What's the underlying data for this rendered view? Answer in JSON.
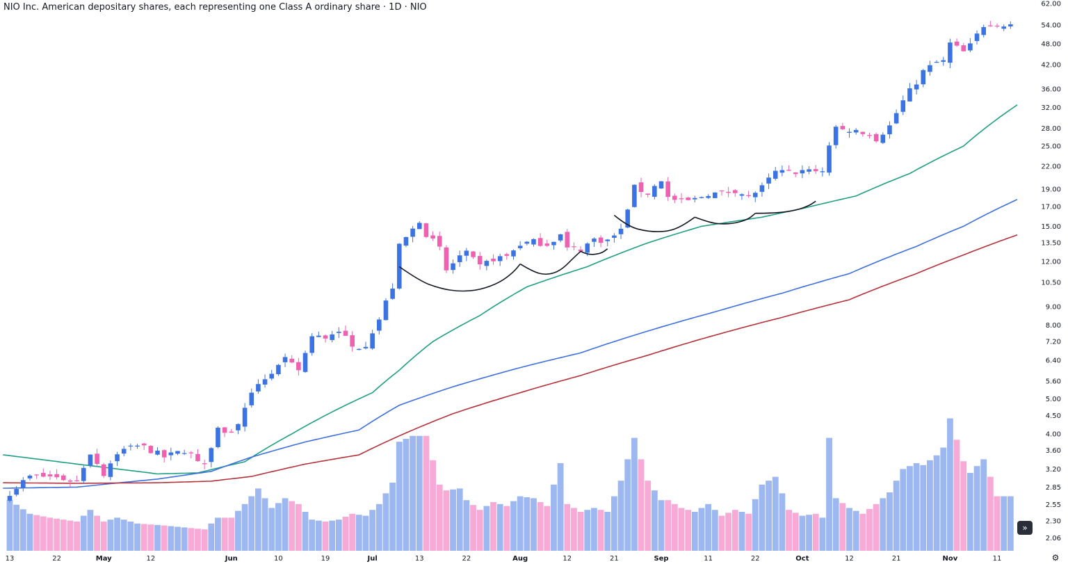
{
  "title": "NIO Inc. American depositary shares, each representing one Class A ordinary share · 1D · NIO",
  "colors": {
    "up": "#3b73e3",
    "down": "#f060b0",
    "vol_up": "#9db7f0",
    "vol_down": "#f7aad6",
    "ma_fast": "#1e9e82",
    "ma_mid": "#3d6ee0",
    "ma_slow": "#b5303a",
    "pattern": "#131722"
  },
  "icons": {
    "nav": "double-chevron-right-icon",
    "settings": "gear-icon"
  },
  "nav_button_label": "»",
  "settings_label": "⚙",
  "chart_data": {
    "type": "candlestick",
    "title": "NIO Inc. American depositary shares, each representing one Class A ordinary share · 1D · NIO",
    "y_scale": "log",
    "ylim": [
      1.9,
      62.0
    ],
    "y_ticks": [
      "62.00",
      "54.00",
      "48.00",
      "42.00",
      "36.00",
      "32.00",
      "28.00",
      "25.00",
      "22.00",
      "19.00",
      "17.00",
      "15.00",
      "13.50",
      "12.00",
      "10.50",
      "9.00",
      "8.00",
      "7.20",
      "6.40",
      "5.60",
      "5.00",
      "4.50",
      "4.00",
      "3.60",
      "3.20",
      "2.85",
      "2.55",
      "2.30",
      "2.06"
    ],
    "x_ticks": [
      {
        "label": "13",
        "bar": 0,
        "bold": false
      },
      {
        "label": "22",
        "bar": 7,
        "bold": false
      },
      {
        "label": "May",
        "bar": 14,
        "bold": true
      },
      {
        "label": "12",
        "bar": 21,
        "bold": false
      },
      {
        "label": "Jun",
        "bar": 33,
        "bold": true
      },
      {
        "label": "10",
        "bar": 40,
        "bold": false
      },
      {
        "label": "19",
        "bar": 47,
        "bold": false
      },
      {
        "label": "Jul",
        "bar": 54,
        "bold": true
      },
      {
        "label": "13",
        "bar": 61,
        "bold": false
      },
      {
        "label": "22",
        "bar": 68,
        "bold": false
      },
      {
        "label": "Aug",
        "bar": 76,
        "bold": true
      },
      {
        "label": "12",
        "bar": 83,
        "bold": false
      },
      {
        "label": "21",
        "bar": 90,
        "bold": false
      },
      {
        "label": "Sep",
        "bar": 97,
        "bold": true
      },
      {
        "label": "11",
        "bar": 104,
        "bold": false
      },
      {
        "label": "22",
        "bar": 111,
        "bold": false
      },
      {
        "label": "Oct",
        "bar": 118,
        "bold": true
      },
      {
        "label": "12",
        "bar": 125,
        "bold": false
      },
      {
        "label": "21",
        "bar": 132,
        "bold": false
      },
      {
        "label": "Nov",
        "bar": 140,
        "bold": true
      },
      {
        "label": "11",
        "bar": 147,
        "bold": false
      }
    ],
    "anchors": [
      [
        0,
        2.75,
        1.3
      ],
      [
        3,
        3.05,
        0.95
      ],
      [
        6,
        3.05,
        0.85
      ],
      [
        10,
        2.95,
        0.75
      ],
      [
        12,
        3.55,
        1.05
      ],
      [
        14,
        3.1,
        0.75
      ],
      [
        16,
        3.55,
        0.85
      ],
      [
        19,
        3.75,
        0.7
      ],
      [
        23,
        3.45,
        0.65
      ],
      [
        26,
        3.6,
        0.6
      ],
      [
        29,
        3.3,
        0.55
      ],
      [
        31,
        4.15,
        0.85
      ],
      [
        33,
        4.0,
        0.85
      ],
      [
        35,
        4.65,
        1.2
      ],
      [
        37,
        5.55,
        1.6
      ],
      [
        39,
        5.9,
        1.1
      ],
      [
        41,
        6.4,
        1.35
      ],
      [
        43,
        6.0,
        1.2
      ],
      [
        45,
        7.4,
        0.8
      ],
      [
        47,
        7.4,
        0.75
      ],
      [
        49,
        7.8,
        0.8
      ],
      [
        51,
        6.9,
        0.95
      ],
      [
        53,
        7.1,
        0.9
      ],
      [
        55,
        8.3,
        1.2
      ],
      [
        57,
        10.2,
        1.75
      ],
      [
        58,
        13.2,
        2.8
      ],
      [
        60,
        14.7,
        2.95
      ],
      [
        61,
        15.6,
        2.95
      ],
      [
        62,
        14.3,
        2.95
      ],
      [
        64,
        13.0,
        1.7
      ],
      [
        65,
        11.3,
        1.55
      ],
      [
        67,
        12.4,
        1.6
      ],
      [
        68,
        12.6,
        1.3
      ],
      [
        70,
        11.6,
        1.05
      ],
      [
        72,
        12.2,
        1.25
      ],
      [
        74,
        12.4,
        1.15
      ],
      [
        76,
        13.4,
        1.4
      ],
      [
        78,
        13.6,
        1.35
      ],
      [
        80,
        13.4,
        1.15
      ],
      [
        82,
        14.2,
        2.25
      ],
      [
        83,
        13.0,
        1.2
      ],
      [
        85,
        13.0,
        1.0
      ],
      [
        87,
        13.8,
        1.1
      ],
      [
        89,
        13.7,
        1.0
      ],
      [
        91,
        14.6,
        1.8
      ],
      [
        93,
        19.2,
        2.9
      ],
      [
        95,
        18.5,
        1.8
      ],
      [
        97,
        20.2,
        1.3
      ],
      [
        98,
        18.0,
        1.3
      ],
      [
        100,
        17.5,
        1.1
      ],
      [
        102,
        17.8,
        1.0
      ],
      [
        104,
        18.5,
        1.2
      ],
      [
        106,
        18.5,
        0.9
      ],
      [
        108,
        18.9,
        1.05
      ],
      [
        110,
        18.0,
        0.95
      ],
      [
        112,
        19.2,
        1.7
      ],
      [
        114,
        21.2,
        1.9
      ],
      [
        116,
        21.1,
        1.05
      ],
      [
        118,
        21.2,
        0.9
      ],
      [
        120,
        21.4,
        0.95
      ],
      [
        121,
        21.4,
        0.85
      ],
      [
        122,
        25.3,
        2.9
      ],
      [
        123,
        27.8,
        1.35
      ],
      [
        125,
        27.7,
        1.1
      ],
      [
        127,
        27.4,
        0.95
      ],
      [
        129,
        26.2,
        1.2
      ],
      [
        131,
        28.4,
        1.5
      ],
      [
        133,
        33.3,
        2.1
      ],
      [
        135,
        37.6,
        2.25
      ],
      [
        136,
        40.2,
        2.2
      ],
      [
        138,
        42.6,
        2.45
      ],
      [
        139,
        42.8,
        2.65
      ],
      [
        140,
        48.0,
        3.4
      ],
      [
        142,
        45.5,
        2.3
      ],
      [
        143,
        47.4,
        2.0
      ],
      [
        145,
        54.0,
        2.35
      ],
      [
        146,
        54.6,
        1.9
      ],
      [
        147,
        54.0,
        1.4
      ]
    ],
    "moving_averages": [
      {
        "points": [
          [
            -1,
            3.5
          ],
          [
            10,
            3.3
          ],
          [
            22,
            3.1
          ],
          [
            28,
            3.12
          ],
          [
            35,
            3.35
          ],
          [
            42,
            4.0
          ],
          [
            48,
            4.6
          ],
          [
            54,
            5.2
          ],
          [
            58,
            6.0
          ],
          [
            63,
            7.2
          ],
          [
            70,
            8.5
          ],
          [
            77,
            10.2
          ],
          [
            86,
            11.6
          ],
          [
            95,
            13.5
          ],
          [
            103,
            15.0
          ],
          [
            112,
            15.9
          ],
          [
            118,
            16.8
          ],
          [
            126,
            18.2
          ],
          [
            134,
            21.0
          ],
          [
            142,
            25.0
          ],
          [
            150,
            32.5
          ]
        ]
      },
      {
        "points": [
          [
            -1,
            2.83
          ],
          [
            10,
            2.85
          ],
          [
            22,
            3.0
          ],
          [
            30,
            3.15
          ],
          [
            36,
            3.45
          ],
          [
            44,
            3.8
          ],
          [
            52,
            4.1
          ],
          [
            58,
            4.8
          ],
          [
            66,
            5.4
          ],
          [
            76,
            6.1
          ],
          [
            85,
            6.7
          ],
          [
            95,
            7.7
          ],
          [
            105,
            8.7
          ],
          [
            115,
            9.8
          ],
          [
            125,
            11.1
          ],
          [
            135,
            13.2
          ],
          [
            142,
            15.0
          ],
          [
            150,
            17.8
          ]
        ]
      },
      {
        "points": [
          [
            -1,
            2.93
          ],
          [
            10,
            2.92
          ],
          [
            22,
            2.93
          ],
          [
            30,
            2.96
          ],
          [
            36,
            3.05
          ],
          [
            44,
            3.3
          ],
          [
            52,
            3.5
          ],
          [
            58,
            3.95
          ],
          [
            66,
            4.55
          ],
          [
            76,
            5.2
          ],
          [
            85,
            5.8
          ],
          [
            95,
            6.6
          ],
          [
            105,
            7.5
          ],
          [
            115,
            8.4
          ],
          [
            125,
            9.4
          ],
          [
            135,
            11.1
          ],
          [
            142,
            12.5
          ],
          [
            150,
            14.2
          ]
        ]
      }
    ],
    "pattern_curves": [
      {
        "points": [
          [
            58,
            11.6
          ],
          [
            61,
            10.6
          ],
          [
            64,
            10.1
          ],
          [
            67,
            9.9
          ],
          [
            70,
            10.0
          ],
          [
            73,
            10.5
          ],
          [
            75,
            11.2
          ],
          [
            76,
            11.8
          ]
        ]
      },
      {
        "points": [
          [
            76,
            11.8
          ],
          [
            78,
            11.2
          ],
          [
            80,
            11.0
          ],
          [
            82,
            11.3
          ],
          [
            84,
            12.3
          ],
          [
            85,
            12.8
          ]
        ]
      },
      {
        "points": [
          [
            85,
            12.8
          ],
          [
            86,
            12.5
          ],
          [
            88,
            12.6
          ],
          [
            89,
            13.0
          ]
        ]
      },
      {
        "points": [
          [
            90,
            16.1
          ],
          [
            92,
            15.0
          ],
          [
            95,
            14.5
          ],
          [
            98,
            14.5
          ],
          [
            100,
            15.0
          ],
          [
            102,
            15.9
          ]
        ]
      },
      {
        "points": [
          [
            102,
            15.9
          ],
          [
            104,
            15.4
          ],
          [
            106,
            15.2
          ],
          [
            108,
            15.3
          ],
          [
            110,
            15.7
          ],
          [
            111,
            16.3
          ]
        ]
      },
      {
        "points": [
          [
            111,
            16.3
          ],
          [
            114,
            16.3
          ],
          [
            117,
            16.6
          ],
          [
            119,
            17.1
          ],
          [
            120,
            17.6
          ]
        ]
      }
    ]
  }
}
